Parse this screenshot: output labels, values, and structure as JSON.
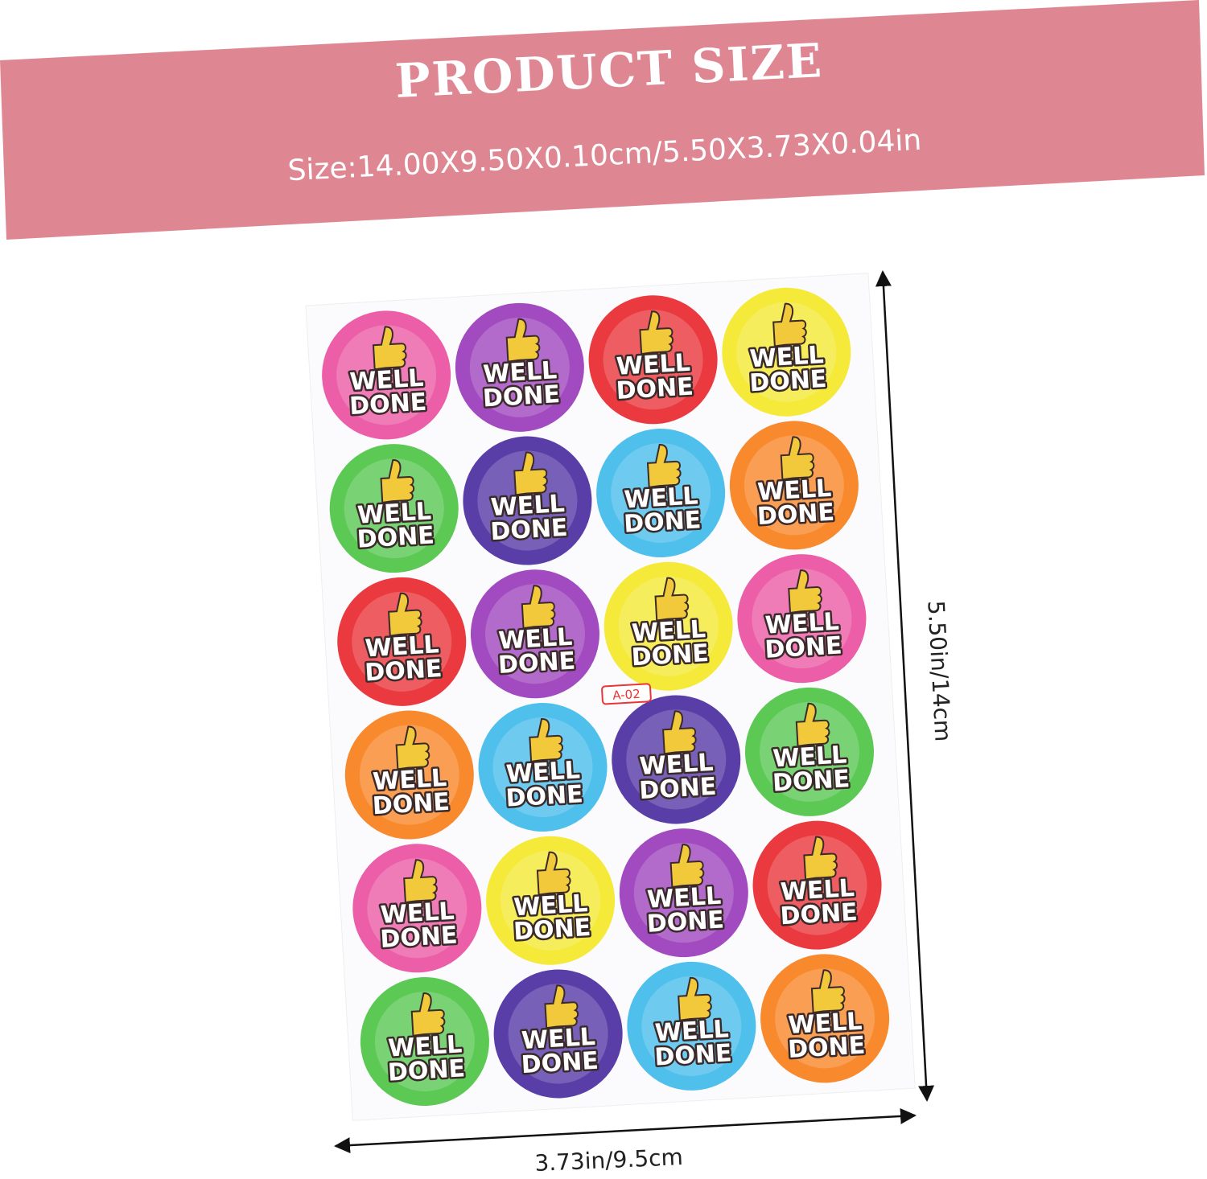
{
  "header": {
    "title": "PRODUCT SIZE",
    "size": "Size:14.00X9.50X0.10cm/5.50X3.73X0.04in"
  },
  "sheet": {
    "code": "A-02",
    "stickers": [
      {
        "color": "#ec5fa8",
        "line1": "WELL",
        "line2": "DONE"
      },
      {
        "color": "#a24bc0",
        "line1": "WELL",
        "line2": "DONE"
      },
      {
        "color": "#ea3a3f",
        "line1": "WELL",
        "line2": "DONE"
      },
      {
        "color": "#f5ea3a",
        "line1": "WELL",
        "line2": "DONE"
      },
      {
        "color": "#5cc955",
        "line1": "WELL",
        "line2": "DONE"
      },
      {
        "color": "#5a3ea8",
        "line1": "WELL",
        "line2": "DONE"
      },
      {
        "color": "#4fc0ec",
        "line1": "WELL",
        "line2": "DONE"
      },
      {
        "color": "#f8892c",
        "line1": "WELL",
        "line2": "DONE"
      },
      {
        "color": "#ea3a3f",
        "line1": "WELL",
        "line2": "DONE"
      },
      {
        "color": "#a24bc0",
        "line1": "WELL",
        "line2": "DONE"
      },
      {
        "color": "#f5ea3a",
        "line1": "WELL",
        "line2": "DONE"
      },
      {
        "color": "#ec5fa8",
        "line1": "WELL",
        "line2": "DONE"
      },
      {
        "color": "#f8892c",
        "line1": "WELL",
        "line2": "DONE"
      },
      {
        "color": "#4fc0ec",
        "line1": "WELL",
        "line2": "DONE"
      },
      {
        "color": "#5a3ea8",
        "line1": "WELL",
        "line2": "DONE"
      },
      {
        "color": "#5cc955",
        "line1": "WELL",
        "line2": "DONE"
      },
      {
        "color": "#ec5fa8",
        "line1": "WELL",
        "line2": "DONE"
      },
      {
        "color": "#f5ea3a",
        "line1": "WELL",
        "line2": "DONE"
      },
      {
        "color": "#a24bc0",
        "line1": "WELL",
        "line2": "DONE"
      },
      {
        "color": "#ea3a3f",
        "line1": "WELL",
        "line2": "DONE"
      },
      {
        "color": "#5cc955",
        "line1": "WELL",
        "line2": "DONE"
      },
      {
        "color": "#5a3ea8",
        "line1": "WELL",
        "line2": "DONE"
      },
      {
        "color": "#4fc0ec",
        "line1": "WELL",
        "line2": "DONE"
      },
      {
        "color": "#f8892c",
        "line1": "WELL",
        "line2": "DONE"
      }
    ]
  },
  "dimensions": {
    "height": "5.50in/14cm",
    "width": "3.73in/9.5cm"
  }
}
